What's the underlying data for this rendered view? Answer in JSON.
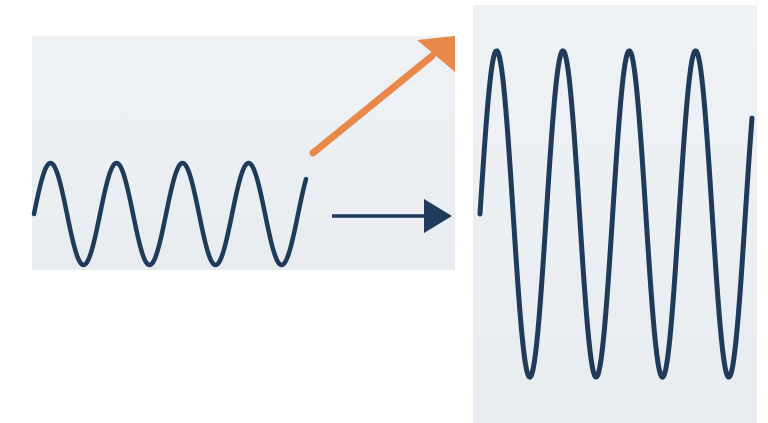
{
  "colors": {
    "page_background": "#ffffff",
    "panel_background": "#edf0f3",
    "wave": "#1f3a5a",
    "output_arrow": "#1f3a5a",
    "diagonal_arrow": "#e8894a"
  },
  "input_wave": {
    "cycles": 4,
    "relative_amplitude": 1.0
  },
  "output_wave": {
    "cycles": 4,
    "relative_amplitude": 3.2
  },
  "arrows": [
    {
      "name": "horizontal-arrow",
      "color_key": "output_arrow",
      "direction": "right"
    },
    {
      "name": "diagonal-arrow",
      "color_key": "diagonal_arrow",
      "direction": "up-right"
    }
  ]
}
